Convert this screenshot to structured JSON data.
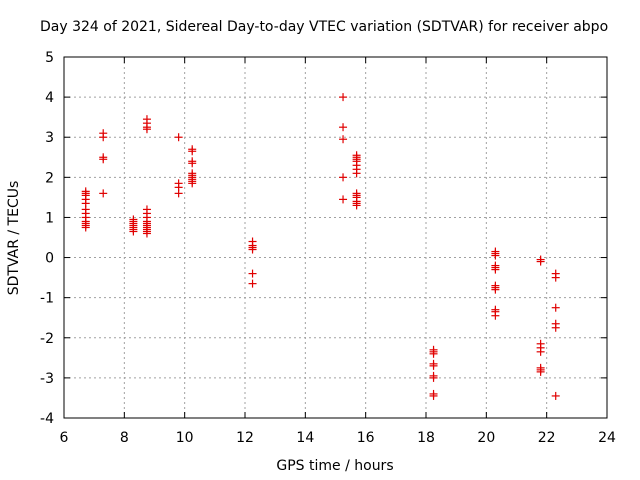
{
  "chart_data": {
    "type": "scatter",
    "title": "Day 324 of 2021, Sidereal Day-to-day VTEC variation (SDTVAR) for receiver abpo",
    "xlabel": "GPS time / hours",
    "ylabel": "SDTVAR / TECUs",
    "xlim": [
      6,
      24
    ],
    "ylim": [
      -4,
      5
    ],
    "xticks": [
      "6",
      "8",
      "10",
      "12",
      "14",
      "16",
      "18",
      "20",
      "22",
      "24"
    ],
    "yticks": [
      "-4",
      "-3",
      "-2",
      "-1",
      "0",
      "1",
      "2",
      "3",
      "4",
      "5"
    ],
    "grid": true,
    "marker": "plus",
    "color": "#e00000",
    "series": [
      {
        "name": "SDTVAR",
        "points": [
          [
            6.72,
            1.65
          ],
          [
            6.72,
            1.6
          ],
          [
            6.72,
            1.55
          ],
          [
            6.72,
            1.45
          ],
          [
            6.72,
            1.35
          ],
          [
            6.72,
            1.2
          ],
          [
            6.72,
            1.1
          ],
          [
            6.72,
            1.0
          ],
          [
            6.72,
            0.9
          ],
          [
            6.72,
            0.85
          ],
          [
            6.72,
            0.8
          ],
          [
            6.72,
            0.75
          ],
          [
            7.3,
            3.1
          ],
          [
            7.3,
            3.0
          ],
          [
            7.3,
            2.5
          ],
          [
            7.3,
            2.45
          ],
          [
            7.3,
            1.6
          ],
          [
            8.3,
            0.95
          ],
          [
            8.3,
            0.9
          ],
          [
            8.3,
            0.85
          ],
          [
            8.3,
            0.8
          ],
          [
            8.3,
            0.75
          ],
          [
            8.3,
            0.7
          ],
          [
            8.3,
            0.65
          ],
          [
            8.75,
            3.45
          ],
          [
            8.75,
            3.35
          ],
          [
            8.75,
            3.25
          ],
          [
            8.75,
            3.2
          ],
          [
            8.75,
            1.2
          ],
          [
            8.75,
            1.1
          ],
          [
            8.75,
            1.0
          ],
          [
            8.75,
            0.9
          ],
          [
            8.75,
            0.85
          ],
          [
            8.75,
            0.8
          ],
          [
            8.75,
            0.75
          ],
          [
            8.75,
            0.7
          ],
          [
            8.75,
            0.65
          ],
          [
            8.75,
            0.6
          ],
          [
            9.8,
            3.0
          ],
          [
            9.8,
            1.85
          ],
          [
            9.8,
            1.75
          ],
          [
            9.8,
            1.6
          ],
          [
            10.25,
            2.7
          ],
          [
            10.25,
            2.65
          ],
          [
            10.25,
            2.4
          ],
          [
            10.25,
            2.35
          ],
          [
            10.25,
            2.1
          ],
          [
            10.25,
            2.05
          ],
          [
            10.25,
            2.0
          ],
          [
            10.25,
            1.95
          ],
          [
            10.25,
            1.9
          ],
          [
            10.25,
            1.85
          ],
          [
            12.25,
            0.4
          ],
          [
            12.25,
            0.3
          ],
          [
            12.25,
            0.25
          ],
          [
            12.25,
            0.2
          ],
          [
            12.25,
            -0.4
          ],
          [
            12.25,
            -0.65
          ],
          [
            15.25,
            4.0
          ],
          [
            15.25,
            3.25
          ],
          [
            15.25,
            2.95
          ],
          [
            15.25,
            2.0
          ],
          [
            15.25,
            1.45
          ],
          [
            15.7,
            2.55
          ],
          [
            15.7,
            2.5
          ],
          [
            15.7,
            2.45
          ],
          [
            15.7,
            2.4
          ],
          [
            15.7,
            2.3
          ],
          [
            15.7,
            2.2
          ],
          [
            15.7,
            2.1
          ],
          [
            15.7,
            1.6
          ],
          [
            15.7,
            1.55
          ],
          [
            15.7,
            1.5
          ],
          [
            15.7,
            1.4
          ],
          [
            15.7,
            1.35
          ],
          [
            15.7,
            1.3
          ],
          [
            18.25,
            -2.3
          ],
          [
            18.25,
            -2.35
          ],
          [
            18.25,
            -2.4
          ],
          [
            18.25,
            -2.65
          ],
          [
            18.25,
            -2.7
          ],
          [
            18.25,
            -2.95
          ],
          [
            18.25,
            -3.0
          ],
          [
            18.25,
            -3.4
          ],
          [
            18.25,
            -3.45
          ],
          [
            20.3,
            0.15
          ],
          [
            20.3,
            0.1
          ],
          [
            20.3,
            0.05
          ],
          [
            20.3,
            -0.2
          ],
          [
            20.3,
            -0.25
          ],
          [
            20.3,
            -0.3
          ],
          [
            20.3,
            -0.7
          ],
          [
            20.3,
            -0.75
          ],
          [
            20.3,
            -0.8
          ],
          [
            20.3,
            -1.3
          ],
          [
            20.3,
            -1.35
          ],
          [
            20.3,
            -1.45
          ],
          [
            21.8,
            -0.05
          ],
          [
            21.8,
            -0.1
          ],
          [
            21.8,
            -2.15
          ],
          [
            21.8,
            -2.25
          ],
          [
            21.8,
            -2.35
          ],
          [
            21.8,
            -2.75
          ],
          [
            21.8,
            -2.8
          ],
          [
            21.8,
            -2.85
          ],
          [
            22.3,
            -0.4
          ],
          [
            22.3,
            -0.5
          ],
          [
            22.3,
            -1.25
          ],
          [
            22.3,
            -1.65
          ],
          [
            22.3,
            -1.75
          ],
          [
            22.3,
            -3.45
          ]
        ]
      }
    ]
  }
}
